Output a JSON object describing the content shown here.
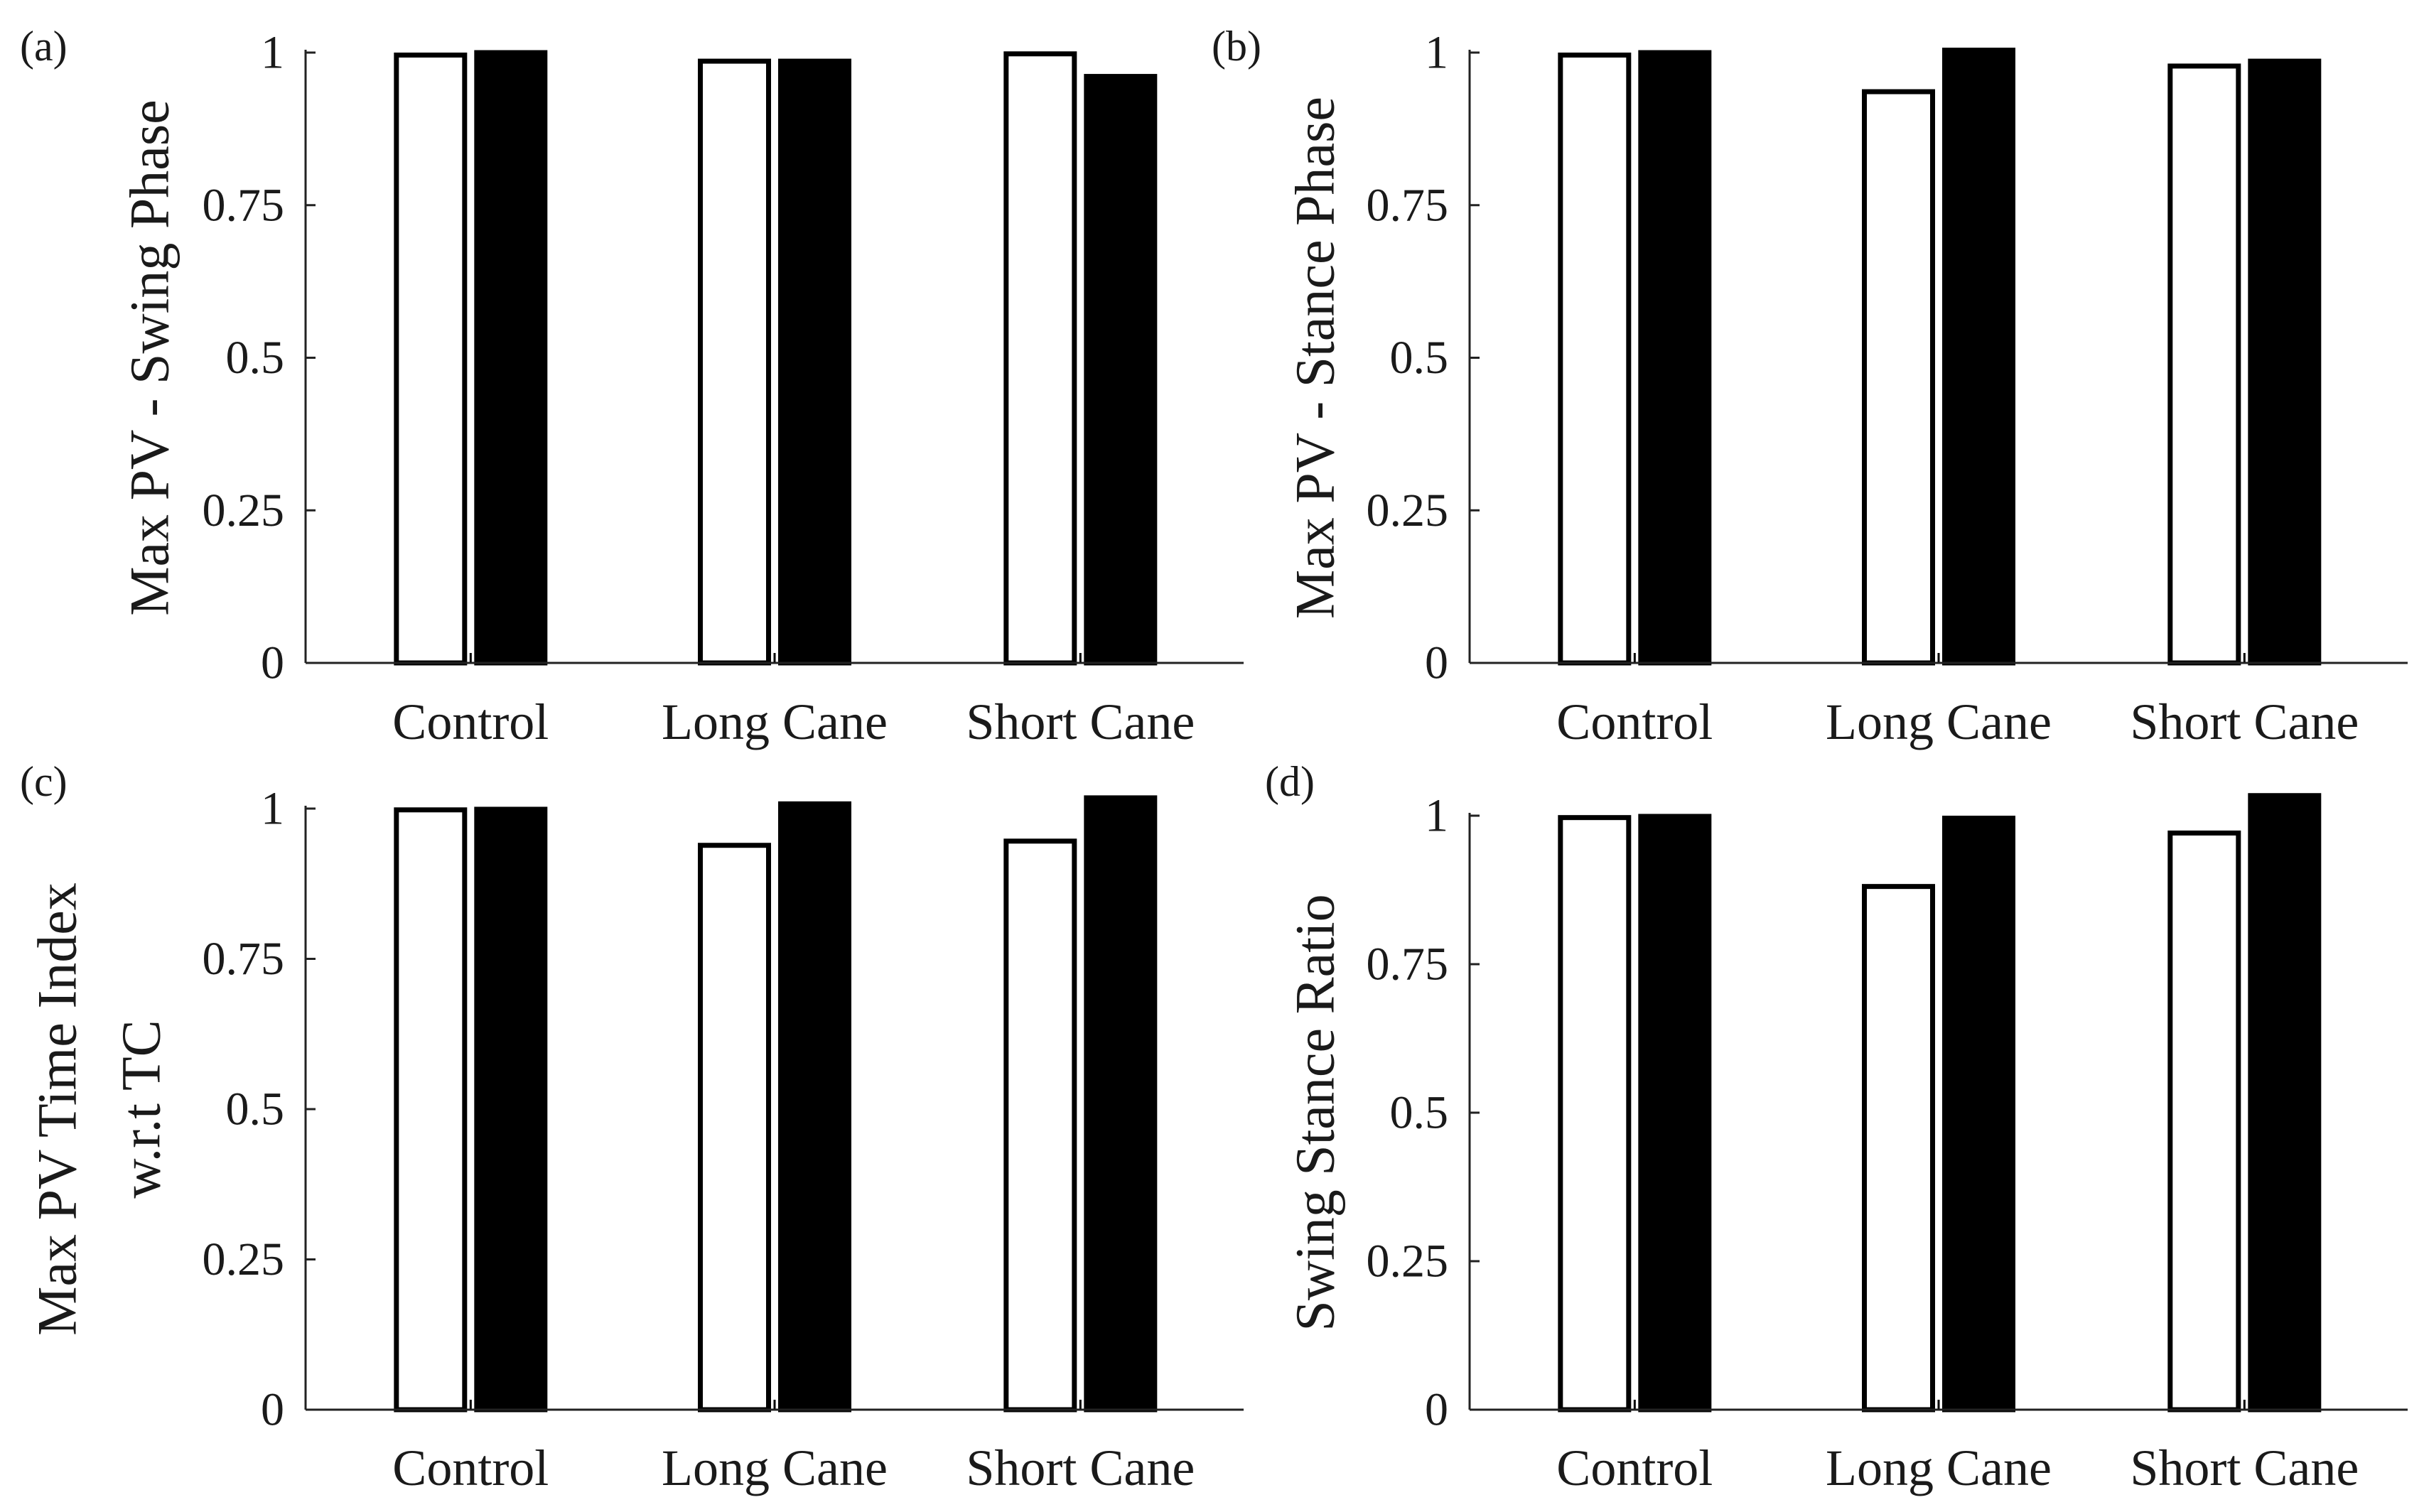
{
  "figure": {
    "legend": null,
    "series_style": {
      "first": {
        "fill": "#ffffff",
        "stroke": "#000000"
      },
      "second": {
        "fill": "#000000",
        "stroke": "#000000"
      }
    }
  },
  "chart_data": [
    {
      "panel_label": "(a)",
      "type": "bar",
      "categories": [
        "Control",
        "Long Cane",
        "Short Cane"
      ],
      "series": [
        {
          "name": "series 1 (white)",
          "values": [
            1.0,
            0.99,
            1.002
          ]
        },
        {
          "name": "series 2 (black)",
          "values": [
            1.004,
            0.99,
            0.965
          ]
        }
      ],
      "ylabel": [
        "Max PV - Swing Phase"
      ],
      "ylim": [
        0,
        1
      ],
      "yticks": [
        0,
        0.25,
        0.5,
        0.75,
        1
      ],
      "ytick_labels": [
        "0",
        "0.25",
        "0.5",
        "0.75",
        "1"
      ],
      "grid": false
    },
    {
      "panel_label": "(b)",
      "type": "bar",
      "categories": [
        "Control",
        "Long Cane",
        "Short Cane"
      ],
      "series": [
        {
          "name": "series 1 (white)",
          "values": [
            1.0,
            0.94,
            0.982
          ]
        },
        {
          "name": "series 2 (black)",
          "values": [
            1.004,
            1.008,
            0.99
          ]
        }
      ],
      "ylabel": [
        "Max PV - Stance Phase"
      ],
      "ylim": [
        0,
        1
      ],
      "yticks": [
        0,
        0.25,
        0.5,
        0.75,
        1
      ],
      "ytick_labels": [
        "0",
        "0.25",
        "0.5",
        "0.75",
        "1"
      ],
      "grid": false
    },
    {
      "panel_label": "(c)",
      "type": "bar",
      "categories": [
        "Control",
        "Long Cane",
        "Short Cane"
      ],
      "series": [
        {
          "name": "series 1 (white)",
          "values": [
            1.002,
            0.943,
            0.95
          ]
        },
        {
          "name": "series 2 (black)",
          "values": [
            1.003,
            1.012,
            1.022
          ]
        }
      ],
      "ylabel": [
        "Max PV Time Index",
        "w.r.t TC"
      ],
      "ylim": [
        0,
        1
      ],
      "yticks": [
        0,
        0.25,
        0.5,
        0.75,
        1
      ],
      "ytick_labels": [
        "0",
        "0.25",
        "0.5",
        "0.75",
        "1"
      ],
      "grid": false
    },
    {
      "panel_label": "(d)",
      "type": "bar",
      "categories": [
        "Control",
        "Long Cane",
        "Short Cane"
      ],
      "series": [
        {
          "name": "series 1 (white)",
          "values": [
            1.001,
            0.885,
            0.975
          ]
        },
        {
          "name": "series 2 (black)",
          "values": [
            1.003,
            1.0,
            1.038
          ]
        }
      ],
      "ylabel": [
        "Swing Stance Ratio"
      ],
      "ylim": [
        0,
        1
      ],
      "yticks": [
        0,
        0.25,
        0.5,
        0.75,
        1
      ],
      "ytick_labels": [
        "0",
        "0.25",
        "0.5",
        "0.75",
        "1"
      ],
      "grid": false
    }
  ]
}
